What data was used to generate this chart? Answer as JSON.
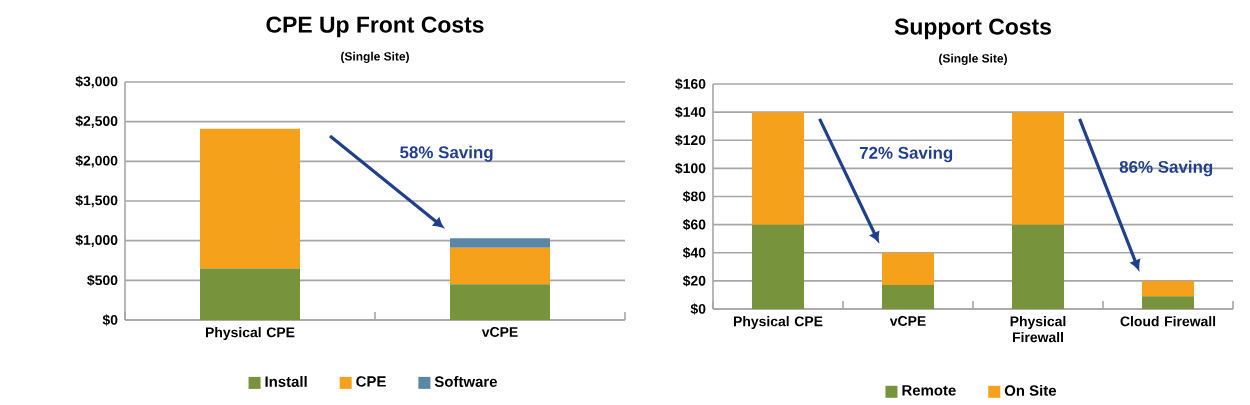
{
  "chart_data": [
    {
      "type": "bar",
      "title": "CPE Up Front Costs",
      "subtitle": "(Single Site)",
      "stacked": true,
      "categories": [
        "Physical CPE",
        "vCPE"
      ],
      "series": [
        {
          "name": "Install",
          "color": "#77933c",
          "values": [
            650,
            450
          ]
        },
        {
          "name": "CPE",
          "color": "#f5a11c",
          "values": [
            1760,
            460
          ]
        },
        {
          "name": "Software",
          "color": "#5b87a6",
          "values": [
            null,
            120
          ]
        }
      ],
      "ylim": [
        0,
        3000
      ],
      "yticks": [
        {
          "value": 0,
          "label": "$0"
        },
        {
          "value": 500,
          "label": "$500"
        },
        {
          "value": 1000,
          "label": "$1,000"
        },
        {
          "value": 1500,
          "label": "$1,500"
        },
        {
          "value": 2000,
          "label": "$2,000"
        },
        {
          "value": 2500,
          "label": "$2,500"
        },
        {
          "value": 3000,
          "label": "$3,000"
        }
      ],
      "grid": "y",
      "legend": "bottom",
      "annotations": [
        "58% Saving"
      ]
    },
    {
      "type": "bar",
      "title": "Support Costs",
      "subtitle": "(Single Site)",
      "stacked": true,
      "categories": [
        "Physical CPE",
        "vCPE",
        "Physical Firewall",
        "Cloud Firewall"
      ],
      "series": [
        {
          "name": "Remote",
          "color": "#77933c",
          "values": [
            60,
            17,
            60,
            9
          ]
        },
        {
          "name": "On Site",
          "color": "#f5a11c",
          "values": [
            80,
            23,
            80,
            11
          ]
        }
      ],
      "ylim": [
        0,
        160
      ],
      "yticks": [
        {
          "value": 0,
          "label": "$0"
        },
        {
          "value": 20,
          "label": "$20"
        },
        {
          "value": 40,
          "label": "$40"
        },
        {
          "value": 60,
          "label": "$60"
        },
        {
          "value": 80,
          "label": "$80"
        },
        {
          "value": 100,
          "label": "$100"
        },
        {
          "value": 120,
          "label": "$120"
        },
        {
          "value": 140,
          "label": "$140"
        },
        {
          "value": 160,
          "label": "$160"
        }
      ],
      "grid": "y",
      "legend": "bottom",
      "annotations": [
        "72% Saving",
        "86% Saving"
      ]
    }
  ]
}
